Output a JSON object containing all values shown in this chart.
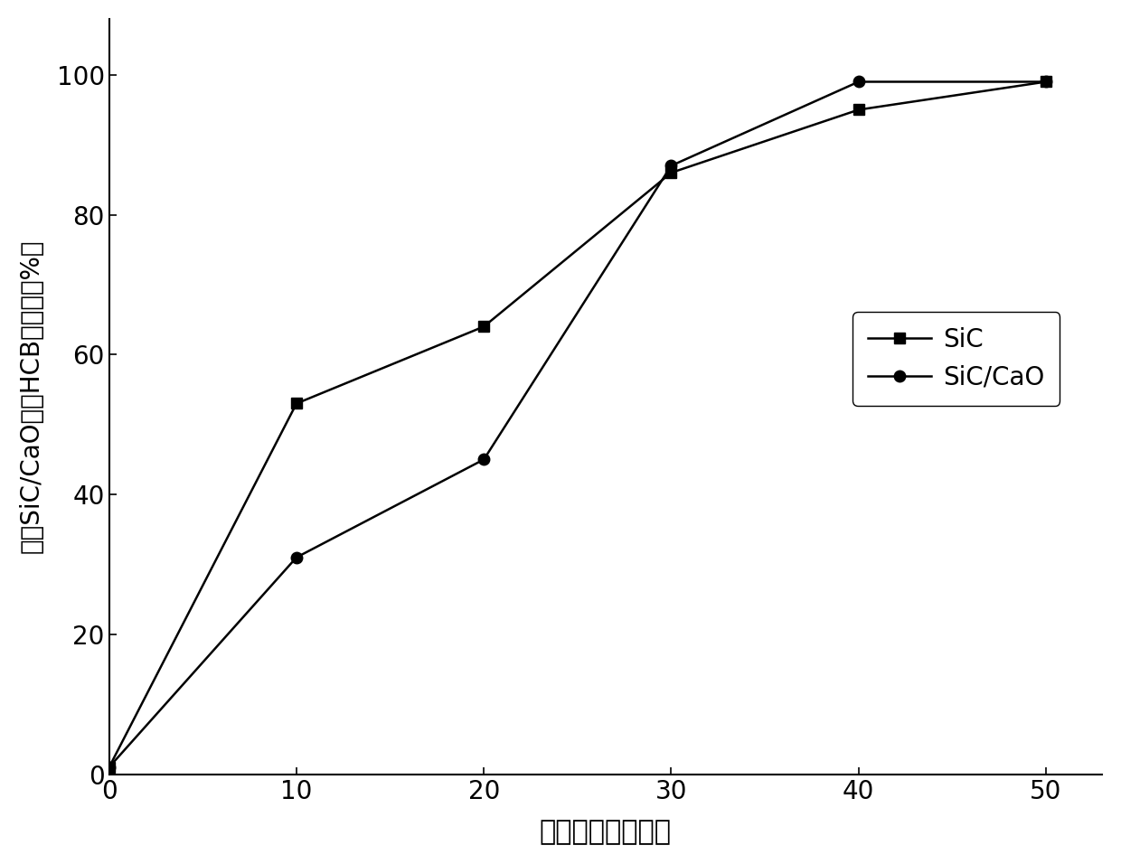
{
  "sic_x": [
    0,
    10,
    20,
    30,
    40,
    50
  ],
  "sic_y": [
    1,
    53,
    64,
    86,
    95,
    99
  ],
  "sic_cao_x": [
    0,
    10,
    20,
    30,
    40,
    50
  ],
  "sic_cao_y": [
    1,
    31,
    45,
    87,
    99,
    99
  ],
  "xlabel": "球磨时间（分钟）",
  "ylabel": "添加SiC/CaO降解HCB的效率（%）",
  "xlim": [
    0,
    53
  ],
  "ylim": [
    0,
    108
  ],
  "xticks": [
    0,
    10,
    20,
    30,
    40,
    50
  ],
  "yticks": [
    0,
    20,
    40,
    60,
    80,
    100
  ],
  "legend_labels": [
    "SiC",
    "SiC/CaO"
  ],
  "line_color": "#000000",
  "marker_sic": "s",
  "marker_sic_cao": "o",
  "markersize": 9,
  "linewidth": 1.8,
  "xlabel_fontsize": 22,
  "ylabel_fontsize": 20,
  "tick_fontsize": 20,
  "legend_fontsize": 20,
  "background_color": "#ffffff"
}
